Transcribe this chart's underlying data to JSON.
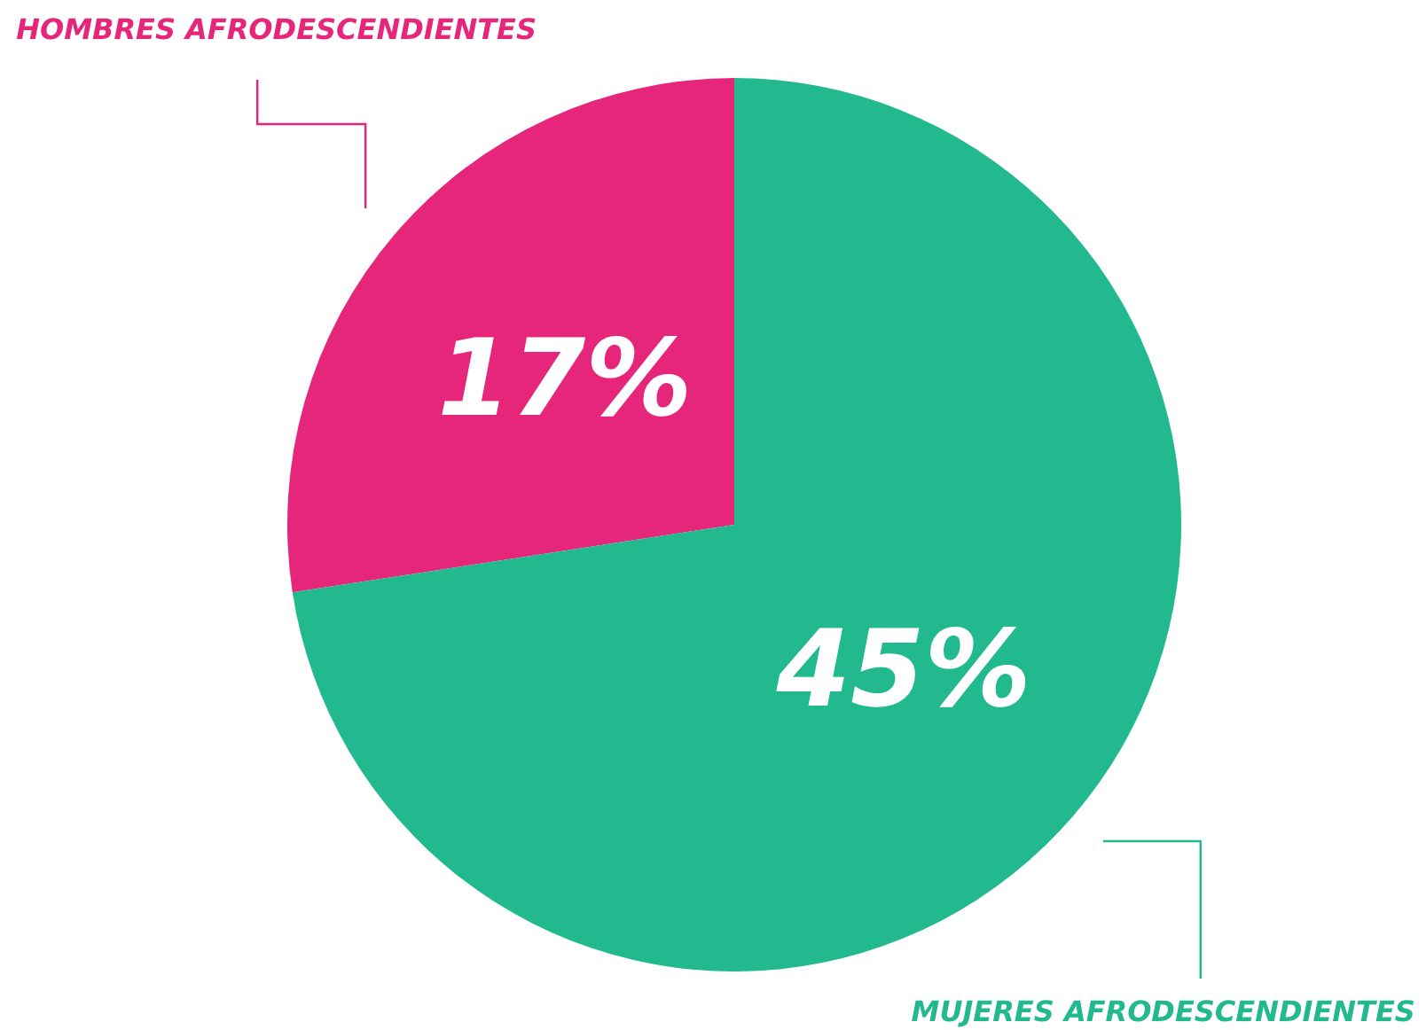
{
  "chart_data": {
    "type": "pie",
    "categories": [
      "HOMBRES AFRODESCENDIENTES",
      "MUJERES AFRODESCENDIENTES"
    ],
    "values": [
      17,
      45
    ],
    "colors": [
      "#e6267a",
      "#22b98f"
    ],
    "value_labels": [
      "17%",
      "45%"
    ]
  }
}
